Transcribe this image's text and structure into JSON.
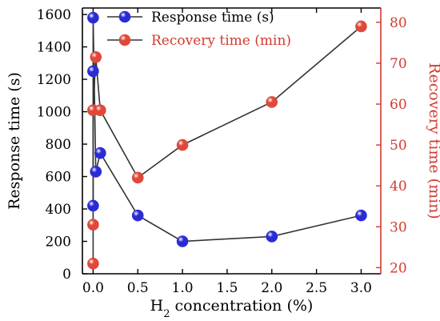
{
  "chart_data": {
    "type": "line",
    "x_label": {
      "prefix": "H",
      "subscript": "2",
      "suffix": " concentration (%)"
    },
    "y_left_label": "Response time (s)",
    "y_right_label": "Recovery time (min)",
    "x_range": [
      -0.12,
      3.22
    ],
    "y_left_range": [
      0,
      1640
    ],
    "y_right_range": [
      18.5,
      83.5
    ],
    "x_ticks": [
      "0.0",
      "0.5",
      "1.0",
      "1.5",
      "2.0",
      "2.5",
      "3.0"
    ],
    "y_left_ticks": [
      "0",
      "200",
      "400",
      "600",
      "800",
      "1000",
      "1200",
      "1400",
      "1600"
    ],
    "y_right_ticks": [
      "20",
      "30",
      "40",
      "50",
      "60",
      "70",
      "80"
    ],
    "legend_position": "top",
    "series": [
      {
        "name": "Response time (s)",
        "axis": "left",
        "color": "#2b2bd6",
        "line_color": "#333333",
        "points": [
          [
            0.0,
            420
          ],
          [
            0.0,
            1250
          ],
          [
            0.0,
            1580
          ],
          [
            0.03,
            630
          ],
          [
            0.08,
            745
          ],
          [
            0.5,
            360
          ],
          [
            1.0,
            200
          ],
          [
            2.0,
            230
          ],
          [
            3.0,
            360
          ]
        ]
      },
      {
        "name": "Recovery time (min)",
        "axis": "right",
        "color": "#e0483a",
        "line_color": "#333333",
        "points": [
          [
            0.0,
            21
          ],
          [
            0.0,
            30.5
          ],
          [
            0.0,
            58.5
          ],
          [
            0.03,
            71.5
          ],
          [
            0.08,
            58.5
          ],
          [
            0.5,
            42
          ],
          [
            1.0,
            50
          ],
          [
            2.0,
            60.5
          ],
          [
            3.0,
            79
          ]
        ]
      }
    ]
  }
}
